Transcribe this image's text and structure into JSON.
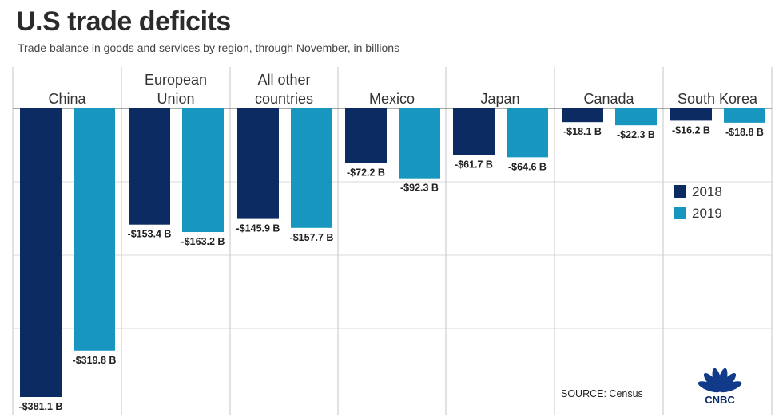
{
  "title": "U.S trade deficits",
  "subtitle": "Trade balance in goods and services by region, through November, in billions",
  "source": "SOURCE: Census",
  "logo": {
    "text": "CNBC"
  },
  "colors": {
    "s2018": "#0d2b63",
    "s2019": "#1797c0",
    "grid": "#d9d9d9"
  },
  "chart_data": {
    "type": "bar",
    "title": "U.S trade deficits",
    "subtitle": "Trade balance in goods and services by region, through November, in billions",
    "categories": [
      [
        "China"
      ],
      [
        "European",
        "Union"
      ],
      [
        "All other",
        "countries"
      ],
      [
        "Mexico"
      ],
      [
        "Japan"
      ],
      [
        "Canada"
      ],
      [
        "South Korea"
      ]
    ],
    "series": [
      {
        "name": "2018",
        "values": [
          -381.1,
          -153.4,
          -145.9,
          -72.2,
          -61.7,
          -18.1,
          -16.2
        ],
        "labels": [
          "-$381.1 B",
          "-$153.4 B",
          "-$145.9 B",
          "-$72.2 B",
          "-$61.7 B",
          "-$18.1 B",
          "-$16.2 B"
        ]
      },
      {
        "name": "2019",
        "values": [
          -319.8,
          -163.2,
          -157.7,
          -92.3,
          -64.6,
          -22.3,
          -18.8
        ],
        "labels": [
          "-$319.8 B",
          "-$163.2 B",
          "-$157.7 B",
          "-$92.3 B",
          "-$64.6 B",
          "-$22.3 B",
          "-$18.8 B"
        ]
      }
    ],
    "ylim": [
      -400,
      0
    ],
    "legend": "right",
    "grid": true
  }
}
